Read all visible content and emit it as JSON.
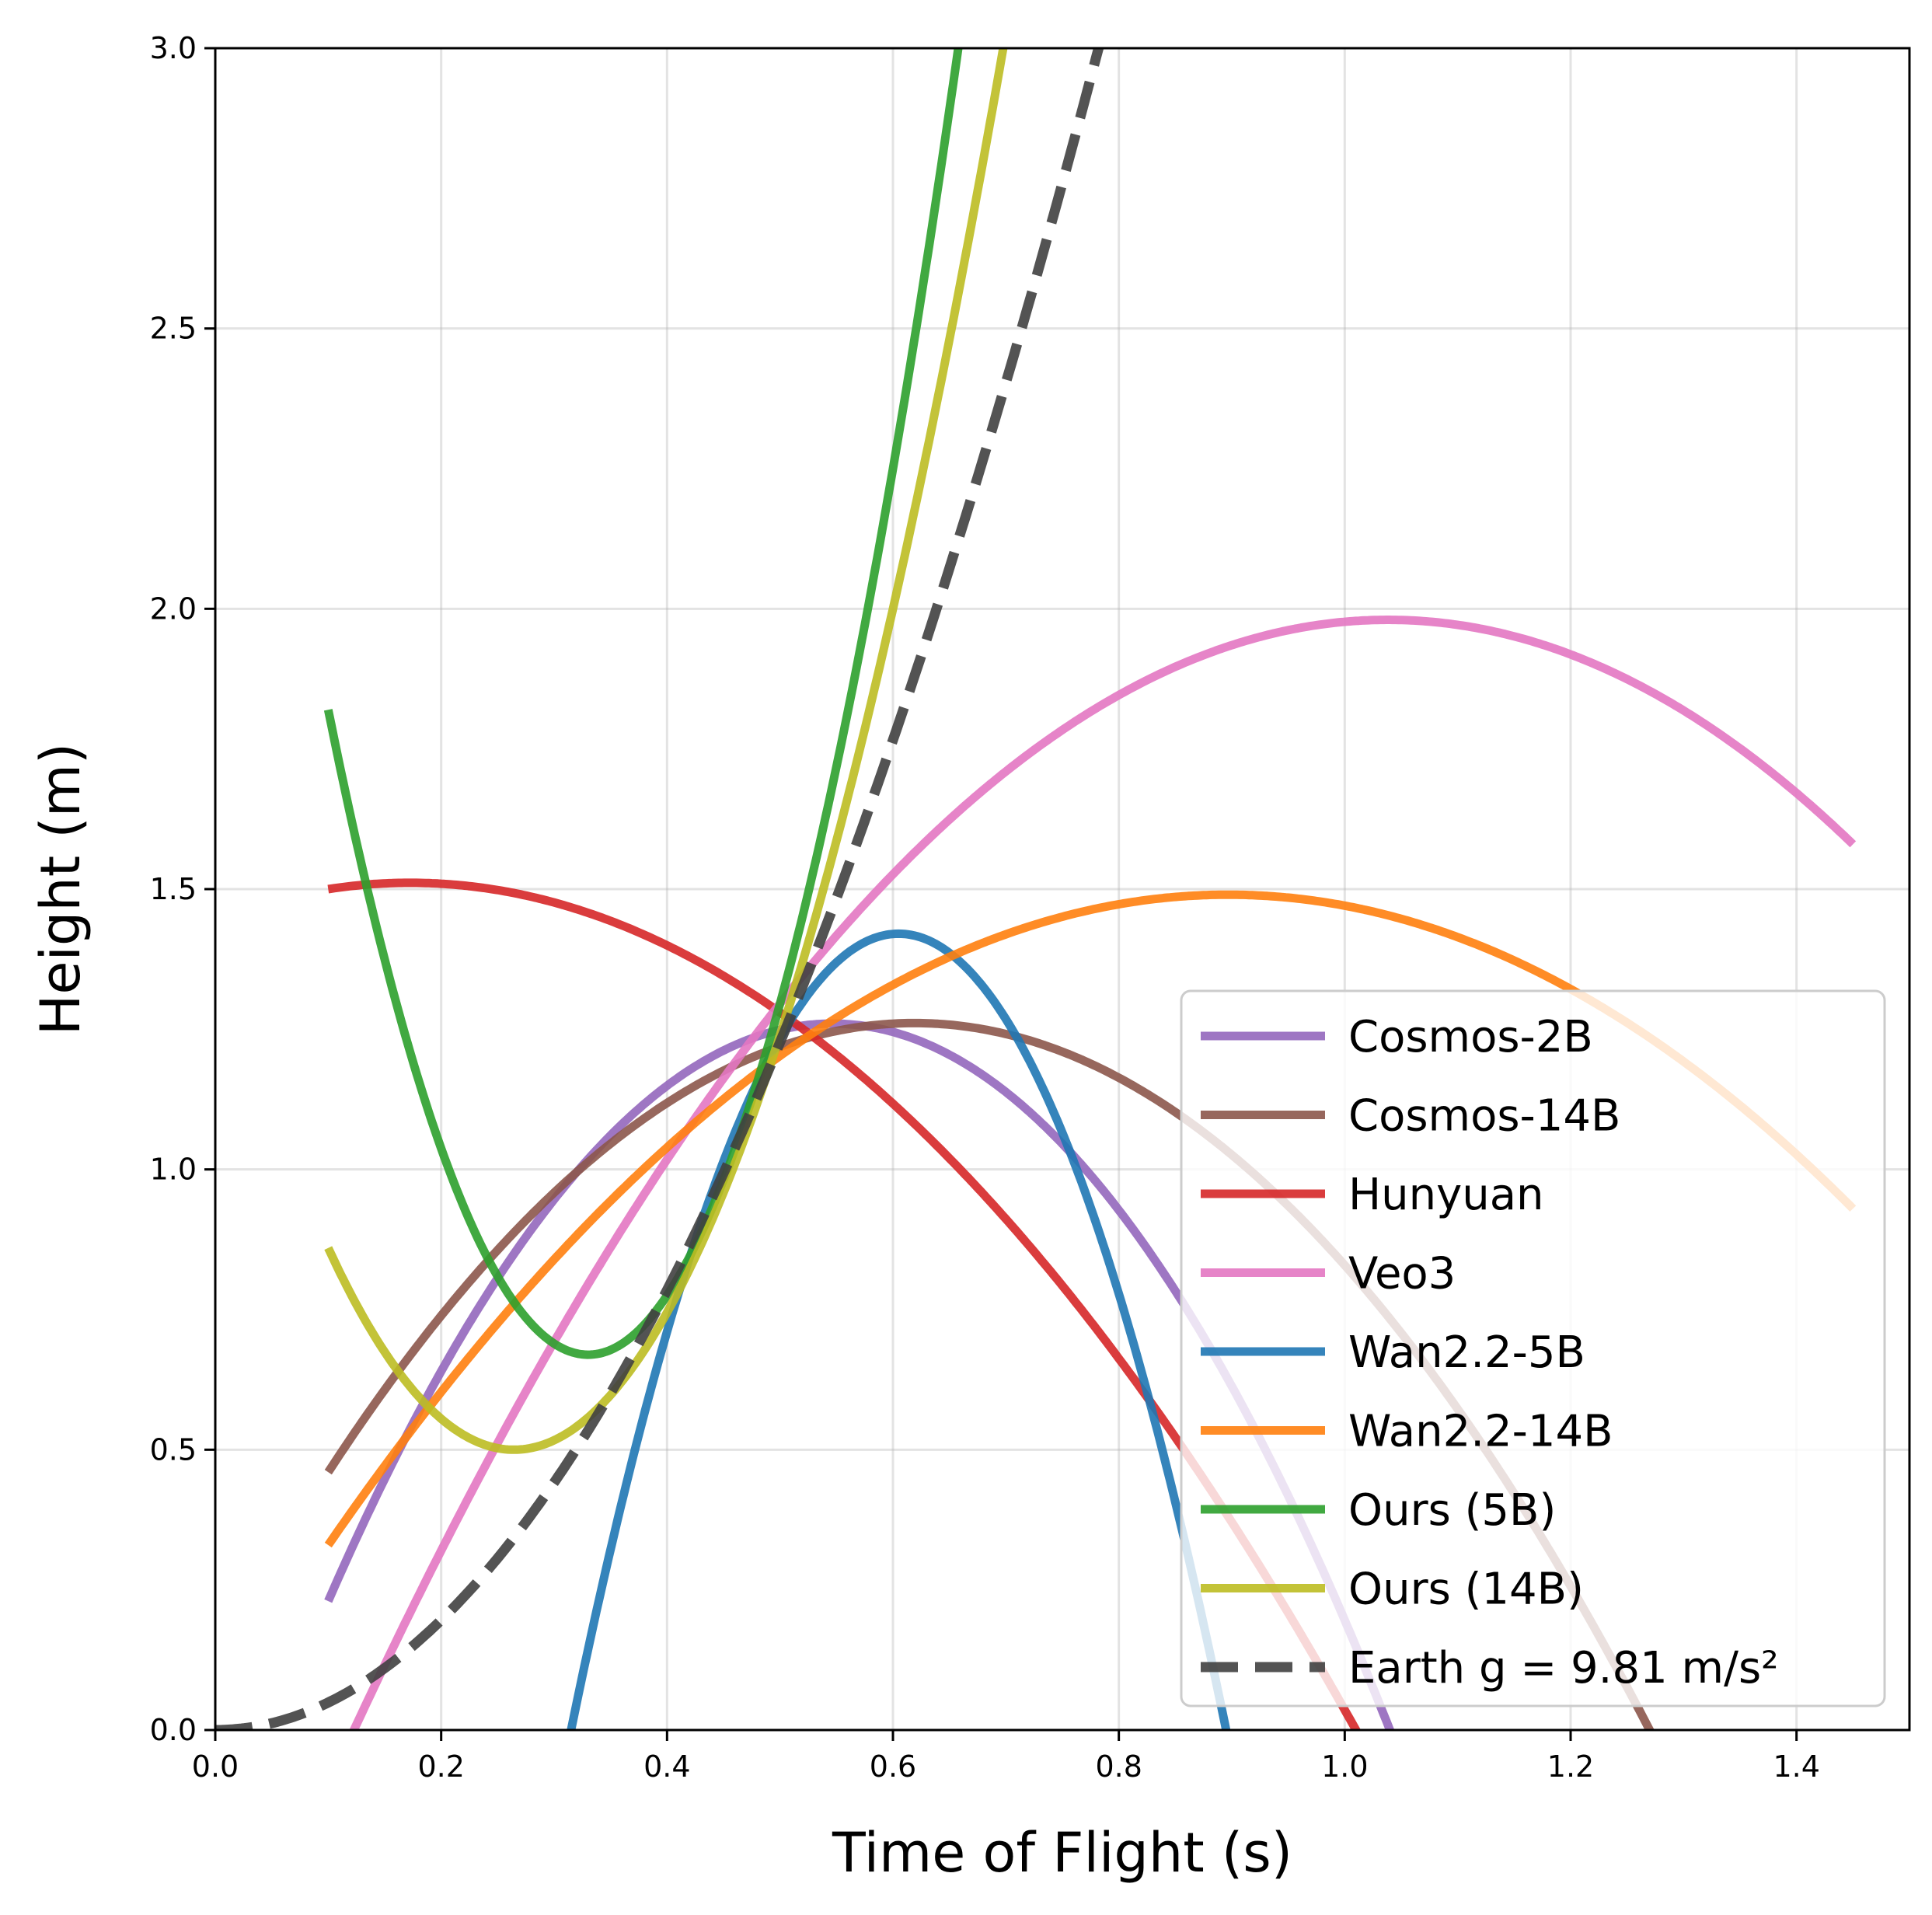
{
  "chart_data": {
    "type": "line",
    "title": "",
    "xlabel": "Time of Flight (s)",
    "ylabel": "Height (m)",
    "xlim": [
      0.0,
      1.5
    ],
    "ylim": [
      0.0,
      3.0
    ],
    "xticks": [
      "0.0",
      "0.2",
      "0.4",
      "0.6",
      "0.8",
      "1.0",
      "1.2",
      "1.4"
    ],
    "yticks": [
      "0.0",
      "0.5",
      "1.0",
      "1.5",
      "2.0",
      "2.5",
      "3.0"
    ],
    "grid": true,
    "legend_position": "lower-right",
    "series": [
      {
        "name": "Cosmos-2B",
        "color": "#9467bd",
        "dash": "solid",
        "t_range": [
          0.1,
          1.45
        ],
        "points": [
          [
            0.1,
            0.23
          ],
          [
            0.55,
            1.26
          ],
          [
            1.04,
            0.0
          ]
        ]
      },
      {
        "name": "Cosmos-14B",
        "color": "#8c564b",
        "dash": "solid",
        "t_range": [
          0.1,
          1.45
        ],
        "points": [
          [
            0.1,
            0.46
          ],
          [
            0.6,
            1.26
          ],
          [
            1.27,
            0.0
          ]
        ]
      },
      {
        "name": "Hunyuan",
        "color": "#d62728",
        "dash": "solid",
        "t_range": [
          0.1,
          1.45
        ],
        "points": [
          [
            0.1,
            1.5
          ],
          [
            0.5,
            1.28
          ],
          [
            1.01,
            0.0
          ]
        ]
      },
      {
        "name": "Veo3",
        "color": "#e377c2",
        "dash": "solid",
        "t_range": [
          0.1,
          1.45
        ],
        "points": [
          [
            0.2,
            0.32
          ],
          [
            1.05,
            1.98
          ],
          [
            1.45,
            1.58
          ]
        ]
      },
      {
        "name": "Wan2.2-5B",
        "color": "#1f77b4",
        "dash": "solid",
        "t_range": [
          0.1,
          1.45
        ],
        "points": [
          [
            0.315,
            0.0
          ],
          [
            0.6,
            1.42
          ],
          [
            0.895,
            0.0
          ]
        ]
      },
      {
        "name": "Wan2.2-14B",
        "color": "#ff7f0e",
        "dash": "solid",
        "t_range": [
          0.1,
          1.45
        ],
        "points": [
          [
            0.1,
            0.33
          ],
          [
            0.9,
            1.49
          ],
          [
            1.45,
            0.93
          ]
        ]
      },
      {
        "name": "Ours (5B)",
        "color": "#2ca02c",
        "dash": "solid",
        "t_range": [
          0.1,
          1.45
        ],
        "points": [
          [
            0.1,
            1.82
          ],
          [
            0.335,
            0.67
          ],
          [
            0.6,
            2.25
          ]
        ]
      },
      {
        "name": "Ours (14B)",
        "color": "#bcbd22",
        "dash": "solid",
        "t_range": [
          0.1,
          1.45
        ],
        "points": [
          [
            0.1,
            0.86
          ],
          [
            0.265,
            0.5
          ],
          [
            0.6,
            2.0
          ]
        ]
      },
      {
        "name": "Earth g = 9.81 m/s²",
        "color": "#404040",
        "dash": "dashed",
        "t_range": [
          0.0,
          1.45
        ],
        "points": [
          [
            0.0,
            0.0
          ],
          [
            0.4,
            0.7848
          ],
          [
            0.8,
            3.1392
          ]
        ]
      }
    ]
  }
}
